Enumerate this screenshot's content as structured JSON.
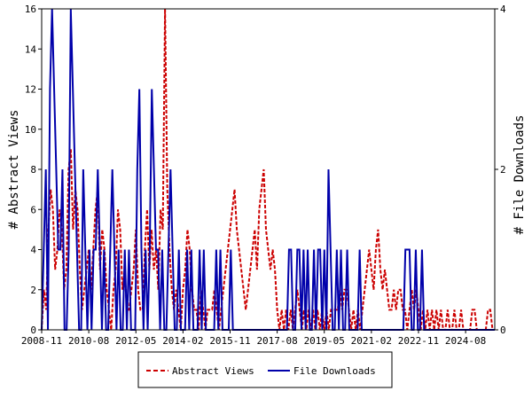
{
  "chart_data": {
    "type": "line",
    "x_tick_labels": [
      "2008-11",
      "2010-08",
      "2012-05",
      "2014-02",
      "2015-11",
      "2017-08",
      "2019-05",
      "2021-02",
      "2022-11",
      "2024-08"
    ],
    "x_range": [
      "2008-11",
      "2025-09"
    ],
    "ylabel_left": "# Abstract Views",
    "ylabel_right": "# File Downloads",
    "ylim_left": [
      0,
      16
    ],
    "ylim_right": [
      0,
      4
    ],
    "y_ticks_left": [
      0,
      2,
      4,
      6,
      8,
      10,
      12,
      14,
      16
    ],
    "y_ticks_right": [
      0,
      2,
      4
    ],
    "grid": false,
    "legend_position": "bottom-center",
    "series": [
      {
        "name": "Abstract Views",
        "axis": "left",
        "color": "#cc0000",
        "style": "dashed",
        "values": [
          0,
          2,
          1,
          5,
          7,
          6,
          3,
          4,
          6,
          5,
          2,
          3,
          8,
          9,
          5,
          7,
          6,
          3,
          1,
          2,
          3,
          4,
          2,
          4,
          6,
          7,
          3,
          5,
          4,
          2,
          1,
          0,
          2,
          3,
          6,
          5,
          2,
          3,
          1,
          1,
          2,
          3,
          5,
          2,
          1,
          1,
          4,
          6,
          3,
          5,
          3,
          4,
          2,
          6,
          5,
          16,
          7,
          4,
          2,
          1,
          2,
          1,
          0,
          2,
          3,
          5,
          4,
          2,
          1,
          1,
          0,
          2,
          1,
          0,
          1,
          1,
          1,
          2,
          1,
          0,
          1,
          2,
          3,
          4,
          5,
          6,
          7,
          5,
          4,
          3,
          2,
          1,
          2,
          3,
          4,
          5,
          3,
          6,
          7,
          8,
          5,
          4,
          3,
          4,
          3,
          1,
          0,
          1,
          0,
          1,
          0,
          1,
          0,
          1,
          2,
          1,
          0,
          1,
          0,
          1,
          0,
          1,
          0,
          1,
          0,
          1,
          0,
          1,
          0,
          1,
          1,
          1,
          1,
          2,
          1,
          2,
          2,
          1,
          0,
          1,
          0,
          1,
          0,
          1,
          2,
          3,
          4,
          3,
          2,
          4,
          5,
          3,
          2,
          3,
          2,
          1,
          1,
          2,
          1,
          2,
          2,
          1,
          1,
          0,
          1,
          2,
          1,
          2,
          1,
          0,
          1,
          0,
          1,
          0,
          1,
          0,
          1,
          0,
          1,
          0,
          0,
          1,
          0,
          0,
          1,
          0,
          0,
          1,
          0,
          0,
          0,
          0,
          1,
          1,
          0,
          0,
          0,
          0,
          0,
          1,
          1,
          0,
          0
        ],
        "last_x": "2025-09"
      },
      {
        "name": "File Downloads",
        "axis": "right",
        "color": "#0000aa",
        "style": "solid",
        "values": [
          0,
          1,
          2,
          0,
          3,
          4,
          3,
          2,
          1,
          1,
          2,
          0,
          0,
          1,
          4,
          3,
          2,
          1,
          0,
          0,
          2,
          1,
          0,
          1,
          0,
          1,
          1,
          2,
          1,
          0,
          1,
          0,
          0,
          1,
          2,
          1,
          0,
          1,
          0,
          0,
          1,
          0,
          1,
          0,
          0,
          0,
          2,
          3,
          1,
          0,
          1,
          0,
          1,
          3,
          2,
          1,
          1,
          0,
          1,
          0,
          0,
          1,
          2,
          1,
          0,
          0,
          1,
          0,
          0,
          0,
          1,
          0,
          1,
          0,
          0,
          0,
          1,
          0,
          1,
          0,
          0,
          0,
          0,
          0,
          1,
          0,
          1,
          0,
          0,
          0,
          0,
          1,
          0,
          0,
          0,
          0,
          0,
          0,
          0,
          0,
          0,
          0,
          0,
          0,
          0,
          0,
          0,
          0,
          0,
          0,
          0,
          0,
          0,
          0,
          0,
          0,
          0,
          0,
          0,
          1,
          1,
          0,
          0,
          1,
          1,
          0,
          1,
          0,
          1,
          0,
          0,
          1,
          0,
          1,
          1,
          0,
          1,
          0,
          2,
          1,
          0,
          0,
          1,
          0,
          1,
          0,
          0,
          1,
          0,
          0,
          0,
          0,
          0,
          1,
          0,
          0,
          0,
          0,
          0,
          0,
          0,
          0,
          0,
          0,
          0,
          0,
          0,
          0,
          0,
          0,
          0,
          0,
          0,
          0,
          0,
          1,
          1,
          1,
          0,
          0,
          1,
          0,
          0,
          1,
          0,
          0,
          0,
          0,
          0,
          0,
          0,
          0,
          0,
          0,
          0,
          0,
          0,
          0,
          0,
          0,
          0,
          0,
          0,
          0,
          0,
          0,
          0,
          0,
          0,
          0,
          0,
          0,
          0,
          0,
          0,
          0,
          0,
          0,
          0
        ],
        "last_x": "2025-09"
      }
    ]
  },
  "legend": {
    "abstract_views_label": "Abstract Views",
    "file_downloads_label": "File Downloads"
  }
}
